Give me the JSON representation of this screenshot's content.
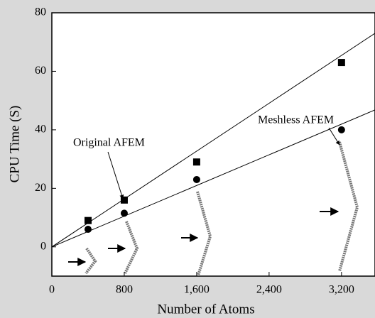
{
  "chart_data": {
    "type": "scatter",
    "xlabel": "Number of Atoms",
    "ylabel": "CPU Time (S)",
    "xlim": [
      0,
      3570
    ],
    "ylim": [
      -10,
      80
    ],
    "xticks": [
      0,
      800,
      {
        "value": 1600,
        "label": "1,600"
      },
      {
        "value": 2400,
        "label": "2,400"
      },
      {
        "value": 3200,
        "label": "3,200"
      }
    ],
    "yticks": [
      0,
      20,
      40,
      60,
      80
    ],
    "series": [
      {
        "name": "Original AFEM",
        "marker": "square",
        "color": "#000000",
        "x": [
          400,
          800,
          1600,
          3200
        ],
        "values": [
          9,
          16,
          29,
          63
        ],
        "fit": {
          "x": [
            0,
            3570
          ],
          "values": [
            0,
            73
          ]
        }
      },
      {
        "name": "Meshless AFEM",
        "marker": "circle",
        "color": "#000000",
        "x": [
          400,
          800,
          1600,
          3200
        ],
        "values": [
          6,
          11.5,
          23,
          40
        ],
        "fit": {
          "x": [
            0,
            3570
          ],
          "values": [
            0,
            46.8
          ]
        }
      }
    ]
  }
}
